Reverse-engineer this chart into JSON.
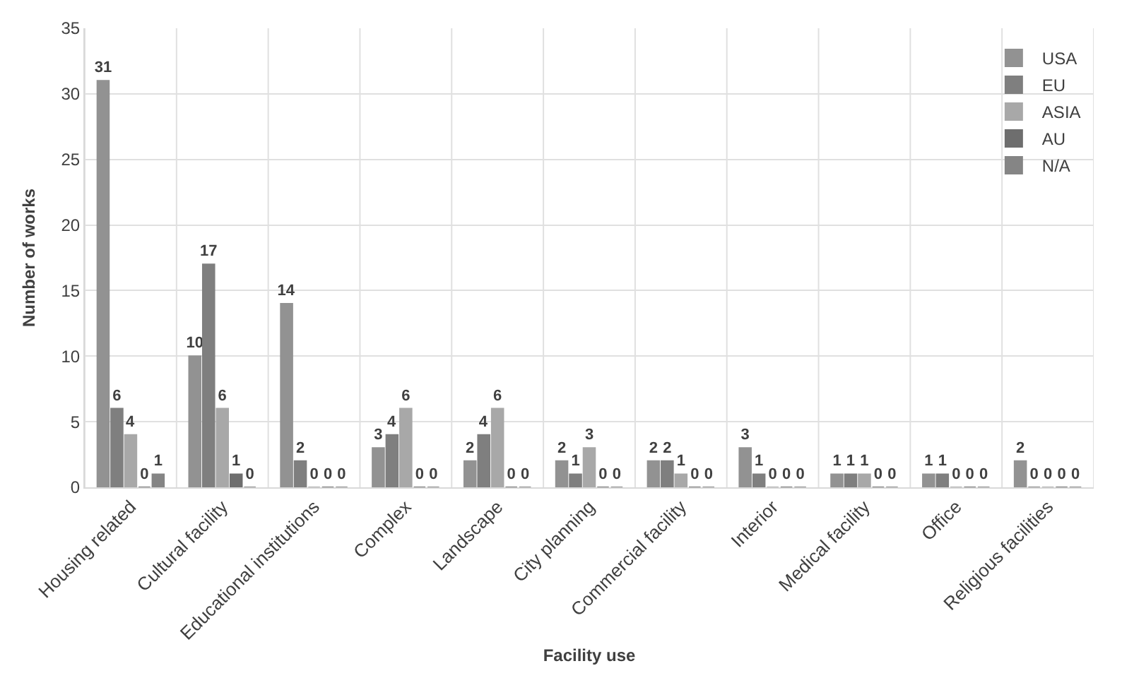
{
  "chart_data": {
    "type": "bar",
    "xlabel": "Facility use",
    "ylabel": "Number of works",
    "categories": [
      "Housing related",
      "Cultural facility",
      "Educational institutions",
      "Complex",
      "Landscape",
      "City planning",
      "Commercial facility",
      "Interior",
      "Medical facility",
      "Office",
      "Religious facilities"
    ],
    "series": [
      {
        "name": "USA",
        "color": "#929292",
        "values": [
          31,
          10,
          14,
          3,
          2,
          2,
          2,
          3,
          1,
          1,
          2
        ]
      },
      {
        "name": "EU",
        "color": "#7f7f7f",
        "values": [
          6,
          17,
          2,
          4,
          4,
          1,
          2,
          1,
          1,
          1,
          0
        ]
      },
      {
        "name": "ASIA",
        "color": "#a8a8a8",
        "values": [
          4,
          6,
          0,
          6,
          6,
          3,
          1,
          0,
          1,
          0,
          0
        ]
      },
      {
        "name": "AU",
        "color": "#6e6e6e",
        "values": [
          0,
          1,
          0,
          0,
          0,
          0,
          0,
          0,
          0,
          0,
          0
        ]
      },
      {
        "name": "N/A",
        "color": "#858585",
        "values": [
          1,
          0,
          0,
          0,
          0,
          0,
          0,
          0,
          0,
          0,
          0
        ]
      }
    ],
    "ylim": [
      0,
      35
    ],
    "yticks": [
      0,
      5,
      10,
      15,
      20,
      25,
      30,
      35
    ],
    "grid": true,
    "legend": "top right",
    "data_labels": true
  }
}
